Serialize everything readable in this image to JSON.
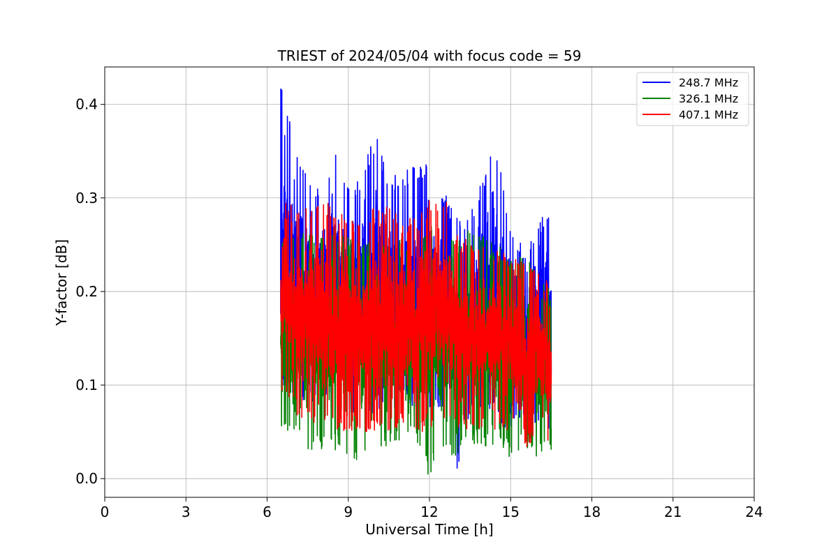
{
  "chart_data": {
    "type": "line",
    "title": "TRIEST of 2024/05/04 with focus code = 59",
    "xlabel": "Universal Time [h]",
    "ylabel": "Y-factor [dB]",
    "xlim": [
      0,
      24
    ],
    "ylim": [
      -0.02,
      0.44
    ],
    "xticks": [
      0,
      3,
      6,
      9,
      12,
      15,
      18,
      21,
      24
    ],
    "yticks": [
      0.0,
      0.1,
      0.2,
      0.3,
      0.4
    ],
    "ytick_labels": [
      "0.0",
      "0.1",
      "0.2",
      "0.3",
      "0.4"
    ],
    "grid": true,
    "legend_position": "top-right",
    "series": [
      {
        "name": "248.7 MHz",
        "color": "#0000ff",
        "x_range": [
          6.5,
          16.5
        ],
        "envelope": {
          "x": [
            6.5,
            7.0,
            7.5,
            8.0,
            8.5,
            9.0,
            9.5,
            10.0,
            10.5,
            11.0,
            11.5,
            12.0,
            12.5,
            13.0,
            13.5,
            14.0,
            14.5,
            15.0,
            15.5,
            16.0,
            16.5
          ],
          "upper": [
            0.42,
            0.37,
            0.33,
            0.31,
            0.36,
            0.31,
            0.33,
            0.37,
            0.32,
            0.33,
            0.34,
            0.34,
            0.31,
            0.28,
            0.28,
            0.33,
            0.36,
            0.27,
            0.25,
            0.28,
            0.29
          ],
          "lower": [
            0.1,
            0.08,
            0.08,
            0.08,
            0.07,
            0.07,
            0.07,
            0.07,
            0.07,
            0.08,
            0.07,
            0.07,
            0.06,
            0.0,
            0.07,
            0.07,
            0.06,
            0.05,
            0.05,
            0.05,
            0.05
          ]
        }
      },
      {
        "name": "326.1 MHz",
        "color": "#008000",
        "x_range": [
          6.5,
          16.5
        ],
        "envelope": {
          "x": [
            6.5,
            7.0,
            7.5,
            8.0,
            8.5,
            9.0,
            9.5,
            10.0,
            10.5,
            11.0,
            11.5,
            12.0,
            12.5,
            13.0,
            13.5,
            14.0,
            14.5,
            15.0,
            15.5,
            16.0,
            16.5
          ],
          "upper": [
            0.29,
            0.27,
            0.26,
            0.27,
            0.27,
            0.26,
            0.25,
            0.26,
            0.26,
            0.26,
            0.26,
            0.27,
            0.27,
            0.25,
            0.28,
            0.26,
            0.25,
            0.24,
            0.24,
            0.22,
            0.2
          ],
          "lower": [
            0.04,
            0.04,
            0.03,
            0.03,
            0.03,
            0.02,
            0.02,
            0.03,
            0.03,
            0.04,
            0.04,
            0.0,
            0.03,
            0.02,
            0.04,
            0.03,
            0.03,
            0.02,
            0.03,
            0.02,
            0.03
          ]
        }
      },
      {
        "name": "407.1 MHz",
        "color": "#ff0000",
        "x_range": [
          6.5,
          16.5
        ],
        "envelope": {
          "x": [
            6.5,
            7.0,
            7.5,
            8.0,
            8.5,
            9.0,
            9.5,
            10.0,
            10.5,
            11.0,
            11.5,
            12.0,
            12.5,
            13.0,
            13.5,
            14.0,
            14.5,
            15.0,
            15.5,
            16.0,
            16.5
          ],
          "upper": [
            0.3,
            0.29,
            0.29,
            0.3,
            0.29,
            0.28,
            0.28,
            0.29,
            0.29,
            0.28,
            0.28,
            0.3,
            0.31,
            0.26,
            0.26,
            0.25,
            0.25,
            0.24,
            0.23,
            0.22,
            0.21
          ],
          "lower": [
            0.08,
            0.07,
            0.06,
            0.06,
            0.05,
            0.05,
            0.05,
            0.05,
            0.05,
            0.05,
            0.05,
            0.05,
            0.05,
            0.05,
            0.05,
            0.05,
            0.05,
            0.05,
            0.03,
            0.04,
            0.03
          ]
        }
      }
    ]
  }
}
